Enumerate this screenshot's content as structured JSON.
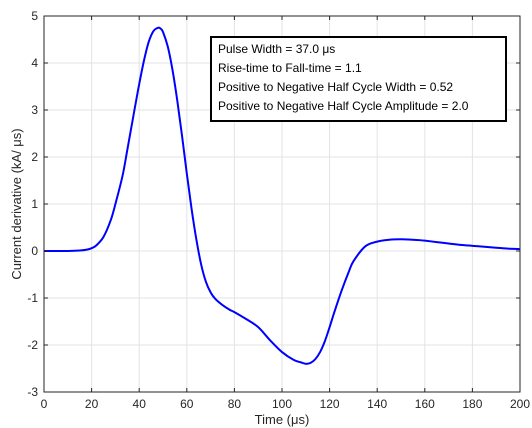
{
  "chart_data": {
    "type": "line",
    "xlabel": "Time (μs)",
    "ylabel": "Current derivative (kA/ μs)",
    "xlim": [
      0,
      200
    ],
    "ylim": [
      -3,
      5
    ],
    "x_ticks": [
      "0",
      "20",
      "40",
      "60",
      "80",
      "100",
      "120",
      "140",
      "160",
      "180",
      "200"
    ],
    "y_ticks": [
      "-3",
      "-2",
      "-1",
      "0",
      "1",
      "2",
      "3",
      "4",
      "5"
    ],
    "grid": true,
    "series_color": "#0000ff",
    "series": [
      {
        "x": [
          0,
          5,
          10,
          15,
          18,
          20,
          22,
          25,
          28,
          30,
          33,
          35,
          38,
          40,
          42,
          44,
          46,
          48,
          49,
          50,
          52,
          54,
          56,
          58,
          60,
          62,
          64,
          66,
          68,
          70,
          72,
          75,
          78,
          80,
          85,
          90,
          95,
          100,
          105,
          108,
          110,
          112,
          114,
          116,
          118,
          120,
          122,
          125,
          128,
          130,
          135,
          140,
          145,
          150,
          155,
          158,
          160,
          165,
          170,
          175,
          180,
          185,
          190,
          195,
          200
        ],
        "y": [
          0,
          0,
          0,
          0.01,
          0.03,
          0.06,
          0.12,
          0.3,
          0.65,
          1.0,
          1.6,
          2.15,
          3.0,
          3.55,
          4.05,
          4.45,
          4.68,
          4.75,
          4.73,
          4.66,
          4.35,
          3.85,
          3.2,
          2.45,
          1.65,
          0.9,
          0.25,
          -0.28,
          -0.65,
          -0.88,
          -1.02,
          -1.15,
          -1.25,
          -1.3,
          -1.45,
          -1.62,
          -1.9,
          -2.15,
          -2.32,
          -2.37,
          -2.4,
          -2.38,
          -2.3,
          -2.15,
          -1.92,
          -1.62,
          -1.3,
          -0.85,
          -0.45,
          -0.22,
          0.1,
          0.2,
          0.24,
          0.25,
          0.24,
          0.23,
          0.22,
          0.19,
          0.16,
          0.13,
          0.11,
          0.09,
          0.07,
          0.05,
          0.04
        ]
      }
    ],
    "annotations": [
      "Pulse Width = 37.0 μs",
      "Rise-time to Fall-time = 1.1",
      "Positive to Negative Half Cycle Width = 0.52",
      "Positive to Negative Half Cycle Amplitude = 2.0"
    ]
  }
}
